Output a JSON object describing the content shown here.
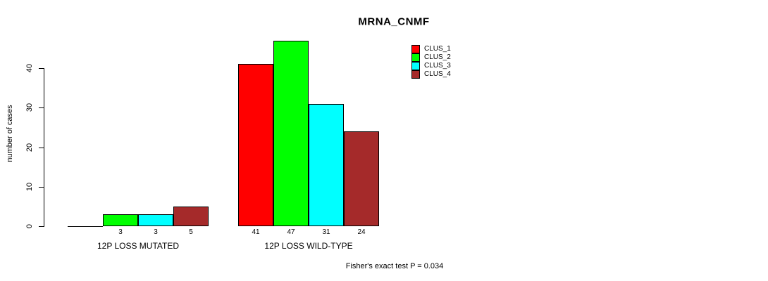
{
  "title": "MRNA_CNMF",
  "ylabel": "number of cases",
  "footer": "Fisher's exact test P = 0.034",
  "colors": {
    "clus_1": "#FF0000",
    "clus_2": "#00FF00",
    "clus_3": "#00FFFF",
    "clus_4": "#A52A2A"
  },
  "legend": [
    {
      "label": "CLUS_1",
      "color": "#FF0000"
    },
    {
      "label": "CLUS_2",
      "color": "#00FF00"
    },
    {
      "label": "CLUS_3",
      "color": "#00FFFF"
    },
    {
      "label": "CLUS_4",
      "color": "#A52A2A"
    }
  ],
  "chart_data": {
    "type": "bar",
    "title": "MRNA_CNMF",
    "ylabel": "number of cases",
    "xlabel": "",
    "categories": [
      "12P LOSS MUTATED",
      "12P LOSS WILD-TYPE"
    ],
    "series": [
      {
        "name": "CLUS_1",
        "color": "#FF0000",
        "values": [
          0,
          41
        ]
      },
      {
        "name": "CLUS_2",
        "color": "#00FF00",
        "values": [
          3,
          47
        ]
      },
      {
        "name": "CLUS_3",
        "color": "#00FFFF",
        "values": [
          3,
          31
        ]
      },
      {
        "name": "CLUS_4",
        "color": "#A52A2A",
        "values": [
          5,
          24
        ]
      }
    ],
    "bar_value_labels_shown": true,
    "zero_bars_unlabeled": true,
    "yticks": [
      0,
      10,
      20,
      30,
      40
    ],
    "ylim": [
      0,
      47
    ],
    "grid": false,
    "legend_position": "top-right",
    "annotation": "Fisher's exact test P = 0.034"
  }
}
